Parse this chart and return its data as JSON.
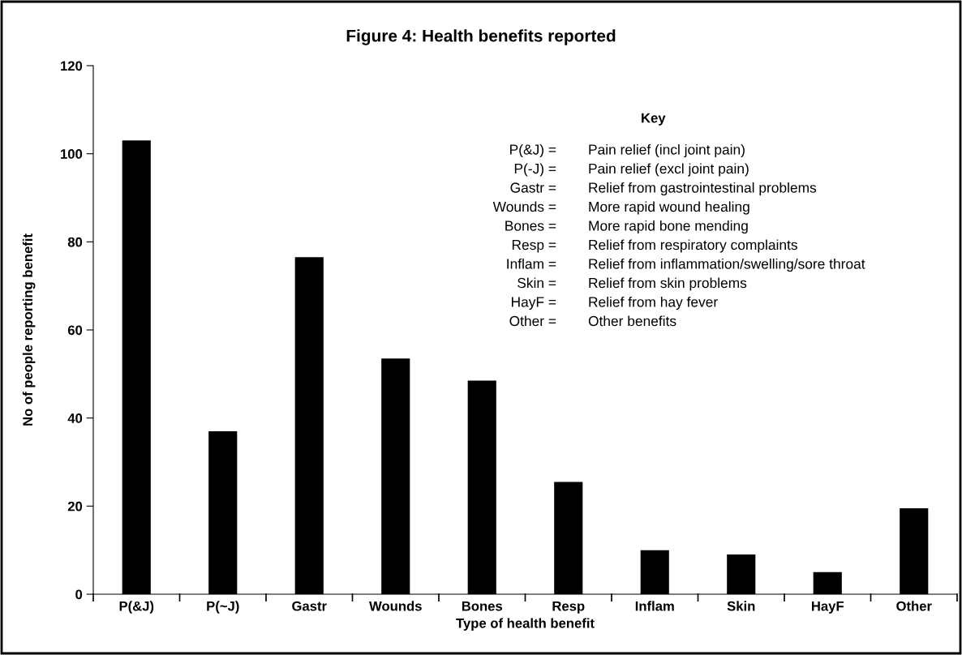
{
  "chart_data": {
    "type": "bar",
    "title": "Figure 4: Health benefits reported",
    "xlabel": "Type of health benefit",
    "ylabel": "No of people reporting benefit",
    "categories": [
      "P(&J)",
      "P(~J)",
      "Gastr",
      "Wounds",
      "Bones",
      "Resp",
      "Inflam",
      "Skin",
      "HayF",
      "Other"
    ],
    "values": [
      103,
      37,
      76.5,
      53.5,
      48.5,
      25.5,
      10,
      9,
      5,
      19.5
    ],
    "color": "#000000",
    "ylim": [
      0,
      120
    ],
    "yticks": [
      0,
      20,
      40,
      60,
      80,
      100,
      120
    ],
    "grid": false,
    "legend": false,
    "annotations": [
      "Key",
      "P(&J) =",
      "Pain relief (incl joint pain)",
      "P(-J) =",
      "Pain relief (excl joint pain)",
      "Gastr =",
      "Relief from gastrointestinal problems",
      "Wounds =",
      "More rapid wound healing",
      "Bones =",
      "More rapid bone mending",
      "Resp =",
      "Relief from respiratory complaints",
      "Inflam =",
      "Relief from inflammation/swelling/sore throat",
      "Skin =",
      "Relief from skin problems",
      "HayF =",
      "Relief from hay fever",
      "Other =",
      "Other benefits"
    ]
  }
}
